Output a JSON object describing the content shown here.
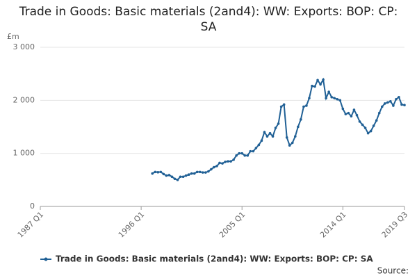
{
  "chart_data": {
    "type": "line",
    "title": "Trade in Goods: Basic materials (2and4): WW: Exports: BOP: CP: SA",
    "y_unit": "£m",
    "source": "Source:",
    "x": [
      "1997 Q1",
      "1997 Q2",
      "1997 Q3",
      "1997 Q4",
      "1998 Q1",
      "1998 Q2",
      "1998 Q3",
      "1998 Q4",
      "1999 Q1",
      "1999 Q2",
      "1999 Q3",
      "1999 Q4",
      "2000 Q1",
      "2000 Q2",
      "2000 Q3",
      "2000 Q4",
      "2001 Q1",
      "2001 Q2",
      "2001 Q3",
      "2001 Q4",
      "2002 Q1",
      "2002 Q2",
      "2002 Q3",
      "2002 Q4",
      "2003 Q1",
      "2003 Q2",
      "2003 Q3",
      "2003 Q4",
      "2004 Q1",
      "2004 Q2",
      "2004 Q3",
      "2004 Q4",
      "2005 Q1",
      "2005 Q2",
      "2005 Q3",
      "2005 Q4",
      "2006 Q1",
      "2006 Q2",
      "2006 Q3",
      "2006 Q4",
      "2007 Q1",
      "2007 Q2",
      "2007 Q3",
      "2007 Q4",
      "2008 Q1",
      "2008 Q2",
      "2008 Q3",
      "2008 Q4",
      "2009 Q1",
      "2009 Q2",
      "2009 Q3",
      "2009 Q4",
      "2010 Q1",
      "2010 Q2",
      "2010 Q3",
      "2010 Q4",
      "2011 Q1",
      "2011 Q2",
      "2011 Q3",
      "2011 Q4",
      "2012 Q1",
      "2012 Q2",
      "2012 Q3",
      "2012 Q4",
      "2013 Q1",
      "2013 Q2",
      "2013 Q3",
      "2013 Q4",
      "2014 Q1",
      "2014 Q2",
      "2014 Q3",
      "2014 Q4",
      "2015 Q1",
      "2015 Q2",
      "2015 Q3",
      "2015 Q4",
      "2016 Q1",
      "2016 Q2",
      "2016 Q3",
      "2016 Q4",
      "2017 Q1",
      "2017 Q2",
      "2017 Q3",
      "2017 Q4",
      "2018 Q1",
      "2018 Q2",
      "2018 Q3",
      "2018 Q4",
      "2019 Q1",
      "2019 Q2",
      "2019 Q3"
    ],
    "series": [
      {
        "name": "Trade in Goods: Basic materials (2and4): WW: Exports: BOP: CP: SA",
        "color": "#206095",
        "values": [
          620,
          650,
          645,
          650,
          610,
          580,
          590,
          560,
          520,
          500,
          560,
          560,
          580,
          600,
          620,
          620,
          650,
          650,
          640,
          640,
          660,
          700,
          740,
          760,
          820,
          810,
          840,
          850,
          850,
          880,
          960,
          1000,
          1000,
          960,
          960,
          1040,
          1040,
          1100,
          1160,
          1240,
          1400,
          1320,
          1380,
          1320,
          1480,
          1560,
          1880,
          1920,
          1300,
          1150,
          1200,
          1320,
          1500,
          1640,
          1880,
          1900,
          2040,
          2270,
          2260,
          2380,
          2300,
          2390,
          2040,
          2160,
          2060,
          2040,
          2020,
          2000,
          1840,
          1740,
          1760,
          1700,
          1820,
          1720,
          1600,
          1540,
          1480,
          1380,
          1420,
          1520,
          1620,
          1760,
          1880,
          1940,
          1960,
          1980,
          1900,
          2020,
          2060,
          1920,
          1910
        ]
      }
    ],
    "xlim": [
      "1987 Q1",
      "2019 Q3"
    ],
    "xticks": [
      "1987 Q1",
      "1996 Q1",
      "2005 Q1",
      "2014 Q1",
      "2019 Q3"
    ],
    "ylim": [
      0,
      3000
    ],
    "yticks": [
      0,
      {
        "value": 1000,
        "label": "1 000"
      },
      {
        "value": 2000,
        "label": "2 000"
      },
      {
        "value": 3000,
        "label": "3 000"
      }
    ],
    "grid": true
  }
}
